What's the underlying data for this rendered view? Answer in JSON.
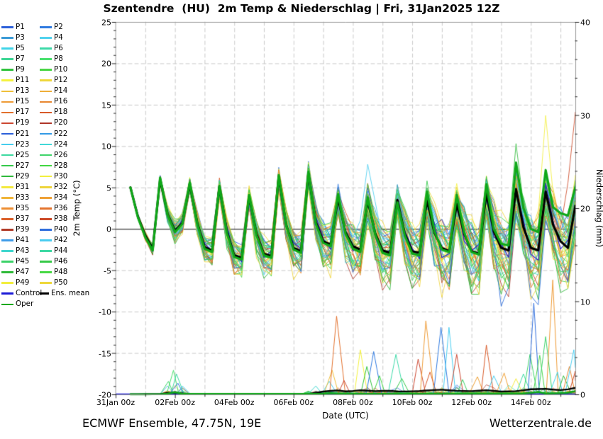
{
  "title": "Szentendre  (HU)  2m Temp & Niederschlag | Fri, 31Jan2025 12Z",
  "axes": {
    "x_label": "Date (UTC)",
    "y_left_label": "2m Temp (°C)",
    "y_right_label": "Niederschlag (mm)"
  },
  "footer": {
    "left": "ECMWF Ensemble, 47.75N, 19E",
    "right": "Wetterzentrale.de"
  },
  "legend": {
    "control_label": "Control",
    "ens_mean_label": "Ens. mean",
    "oper_label": "Oper",
    "control_color": "#1b1ad6",
    "ens_mean_color": "#000000",
    "oper_color": "#0fa818"
  },
  "chart_data": {
    "type": "line",
    "title": "Szentendre  (HU)  2m Temp & Niederschlag | Fri, 31Jan2025 12Z",
    "x_axis": {
      "label": "Date (UTC)",
      "start_day": 0,
      "end_day": 15.5,
      "run_start_day": 0.5,
      "tick_step_days": 2,
      "grid_step_days": 1,
      "tick_labels": [
        "31Jan 00z",
        "02Feb 00z",
        "04Feb 00z",
        "06Feb 00z",
        "08Feb 00z",
        "10Feb 00z",
        "12Feb 00z",
        "14Feb 00z"
      ]
    },
    "y_temp": {
      "label": "2m Temp (°C)",
      "min": -20,
      "max": 25,
      "tick_step": 5,
      "minor_step": 1,
      "zero_line": true
    },
    "y_precip": {
      "label": "Niederschlag (mm)",
      "min": 0,
      "max": 40,
      "tick_step": 10,
      "minor_step": 2
    },
    "ens_mean_temp": [
      [
        0.5,
        5.0
      ],
      [
        0.75,
        1.5
      ],
      [
        1.0,
        -0.8
      ],
      [
        1.25,
        -2.4
      ],
      [
        1.5,
        6.0
      ],
      [
        1.75,
        1.8
      ],
      [
        2.0,
        -0.2
      ],
      [
        2.25,
        0.7
      ],
      [
        2.5,
        5.4
      ],
      [
        2.75,
        0.8
      ],
      [
        3.0,
        -2.2
      ],
      [
        3.25,
        -2.6
      ],
      [
        3.5,
        5.1
      ],
      [
        3.75,
        -0.3
      ],
      [
        4.0,
        -3.2
      ],
      [
        4.25,
        -3.5
      ],
      [
        4.5,
        3.9
      ],
      [
        4.75,
        -0.6
      ],
      [
        5.0,
        -3.0
      ],
      [
        5.25,
        -3.3
      ],
      [
        5.5,
        6.3
      ],
      [
        5.75,
        0.5
      ],
      [
        6.0,
        -2.3
      ],
      [
        6.25,
        -2.7
      ],
      [
        6.5,
        6.7
      ],
      [
        6.75,
        0.8
      ],
      [
        7.0,
        -1.5
      ],
      [
        7.25,
        -1.9
      ],
      [
        7.5,
        3.7
      ],
      [
        7.75,
        -0.4
      ],
      [
        8.0,
        -2.1
      ],
      [
        8.25,
        -2.5
      ],
      [
        8.5,
        3.4
      ],
      [
        8.75,
        -0.5
      ],
      [
        9.0,
        -2.6
      ],
      [
        9.25,
        -2.9
      ],
      [
        9.5,
        3.5
      ],
      [
        9.75,
        -0.6
      ],
      [
        10.0,
        -2.7
      ],
      [
        10.25,
        -2.9
      ],
      [
        10.5,
        3.5
      ],
      [
        10.75,
        -0.5
      ],
      [
        11.0,
        -2.3
      ],
      [
        11.25,
        -2.7
      ],
      [
        11.5,
        3.0
      ],
      [
        11.75,
        -0.6
      ],
      [
        12.0,
        -2.7
      ],
      [
        12.25,
        -3.0
      ],
      [
        12.5,
        4.3
      ],
      [
        12.75,
        -0.3
      ],
      [
        13.0,
        -2.3
      ],
      [
        13.25,
        -2.6
      ],
      [
        13.5,
        4.8
      ],
      [
        13.75,
        0.2
      ],
      [
        14.0,
        -2.3
      ],
      [
        14.25,
        -2.6
      ],
      [
        14.5,
        4.5
      ],
      [
        14.75,
        0.5
      ],
      [
        15.0,
        -1.5
      ],
      [
        15.25,
        -2.3
      ],
      [
        15.5,
        2.8
      ]
    ],
    "oper_temp": [
      [
        0.5,
        5.0
      ],
      [
        0.75,
        1.4
      ],
      [
        1.0,
        -1.0
      ],
      [
        1.25,
        -2.6
      ],
      [
        1.5,
        6.2
      ],
      [
        1.75,
        1.7
      ],
      [
        2.0,
        -0.4
      ],
      [
        2.25,
        0.6
      ],
      [
        2.5,
        5.6
      ],
      [
        2.75,
        0.6
      ],
      [
        3.0,
        -2.4
      ],
      [
        3.25,
        -2.8
      ],
      [
        3.5,
        5.2
      ],
      [
        3.75,
        -0.5
      ],
      [
        4.0,
        -3.4
      ],
      [
        4.25,
        -3.7
      ],
      [
        4.5,
        4.1
      ],
      [
        4.75,
        -0.8
      ],
      [
        5.0,
        -3.2
      ],
      [
        5.25,
        -3.5
      ],
      [
        5.5,
        6.5
      ],
      [
        5.75,
        0.4
      ],
      [
        6.0,
        -2.5
      ],
      [
        6.25,
        -2.9
      ],
      [
        6.5,
        6.9
      ],
      [
        6.75,
        0.6
      ],
      [
        7.0,
        -1.7
      ],
      [
        7.25,
        -2.1
      ],
      [
        7.5,
        4.2
      ],
      [
        7.75,
        -0.6
      ],
      [
        8.0,
        -2.4
      ],
      [
        8.25,
        -2.8
      ],
      [
        8.5,
        3.8
      ],
      [
        8.75,
        -0.7
      ],
      [
        9.0,
        -2.9
      ],
      [
        9.25,
        -3.2
      ],
      [
        9.5,
        3.2
      ],
      [
        9.75,
        -0.8
      ],
      [
        10.0,
        -3.0
      ],
      [
        10.25,
        -3.2
      ],
      [
        10.5,
        4.5
      ],
      [
        10.75,
        -0.3
      ],
      [
        11.0,
        -2.5
      ],
      [
        11.25,
        -2.8
      ],
      [
        11.5,
        4.1
      ],
      [
        11.75,
        -0.4
      ],
      [
        12.0,
        -2.8
      ],
      [
        12.25,
        -3.1
      ],
      [
        12.5,
        5.4
      ],
      [
        12.75,
        0.0
      ],
      [
        13.0,
        -1.8
      ],
      [
        13.25,
        -2.0
      ],
      [
        13.5,
        8.0
      ],
      [
        13.75,
        2.5
      ],
      [
        14.0,
        0.0
      ],
      [
        14.25,
        -0.4
      ],
      [
        14.5,
        7.1
      ],
      [
        14.75,
        2.6
      ],
      [
        15.0,
        1.9
      ],
      [
        15.25,
        1.6
      ],
      [
        15.5,
        5.0
      ]
    ],
    "spread_width": [
      [
        0.5,
        0.12
      ],
      [
        1.0,
        0.35
      ],
      [
        1.5,
        0.45
      ],
      [
        2.0,
        1.1
      ],
      [
        2.5,
        0.8
      ],
      [
        3.0,
        1.3
      ],
      [
        3.5,
        1.0
      ],
      [
        4.0,
        1.5
      ],
      [
        4.5,
        1.2
      ],
      [
        5.0,
        1.7
      ],
      [
        5.5,
        1.3
      ],
      [
        6.0,
        1.8
      ],
      [
        6.5,
        1.4
      ],
      [
        7.0,
        2.1
      ],
      [
        7.5,
        1.7
      ],
      [
        8.0,
        2.3
      ],
      [
        8.5,
        1.9
      ],
      [
        9.0,
        2.5
      ],
      [
        9.5,
        2.0
      ],
      [
        10.0,
        2.7
      ],
      [
        10.5,
        2.1
      ],
      [
        11.0,
        2.9
      ],
      [
        11.5,
        2.3
      ],
      [
        12.0,
        3.1
      ],
      [
        12.5,
        2.4
      ],
      [
        13.0,
        3.2
      ],
      [
        13.5,
        2.6
      ],
      [
        14.0,
        3.4
      ],
      [
        14.5,
        2.8
      ],
      [
        15.0,
        3.6
      ],
      [
        15.5,
        3.2
      ]
    ],
    "temp_anchors": [
      [
        39,
        13.1,
        -9.7
      ],
      [
        39,
        14.2,
        -9.3
      ],
      [
        48,
        14.5,
        13.7
      ],
      [
        37,
        15.5,
        14.1
      ],
      [
        41,
        8.5,
        7.8
      ],
      [
        46,
        13.5,
        10.3
      ],
      [
        10,
        8.25,
        -4.7
      ]
    ],
    "ens_mean_precip": [
      [
        0,
        0
      ],
      [
        1.5,
        0.02
      ],
      [
        1.9,
        0.25
      ],
      [
        2.1,
        0.15
      ],
      [
        2.5,
        0.02
      ],
      [
        6.5,
        0.05
      ],
      [
        7.0,
        0.3
      ],
      [
        7.45,
        0.45
      ],
      [
        7.8,
        0.3
      ],
      [
        8.25,
        0.45
      ],
      [
        8.7,
        0.35
      ],
      [
        9.2,
        0.4
      ],
      [
        9.6,
        0.3
      ],
      [
        10.2,
        0.35
      ],
      [
        10.6,
        0.45
      ],
      [
        11.0,
        0.5
      ],
      [
        11.4,
        0.4
      ],
      [
        12.0,
        0.35
      ],
      [
        12.5,
        0.45
      ],
      [
        13.0,
        0.3
      ],
      [
        13.5,
        0.35
      ],
      [
        14.0,
        0.55
      ],
      [
        14.5,
        0.6
      ],
      [
        14.8,
        0.5
      ],
      [
        15.1,
        0.45
      ],
      [
        15.5,
        0.7
      ]
    ],
    "oper_precip": [
      [
        0,
        0
      ],
      [
        1.7,
        0.02
      ],
      [
        1.95,
        0.3
      ],
      [
        2.15,
        0.05
      ],
      [
        6.9,
        0.05
      ],
      [
        7.3,
        0.15
      ],
      [
        7.7,
        0.05
      ],
      [
        13.9,
        0.1
      ],
      [
        14.2,
        0.3
      ],
      [
        14.5,
        0.1
      ],
      [
        15.2,
        0.15
      ],
      [
        15.5,
        0.35
      ]
    ],
    "precip_events": [
      [
        1.78,
        1.4,
        "#3ed46a"
      ],
      [
        1.95,
        2.6,
        "#49e06e"
      ],
      [
        2.05,
        2.2,
        "#3cd9a0"
      ],
      [
        2.1,
        1.2,
        "#2e6ddd"
      ],
      [
        2.25,
        0.9,
        "#45cdee"
      ],
      [
        6.75,
        0.9,
        "#3fd6ce"
      ],
      [
        7.2,
        1.4,
        "#45cdee"
      ],
      [
        7.3,
        2.6,
        "#f0bf3a"
      ],
      [
        7.45,
        8.4,
        "#e2702c"
      ],
      [
        7.7,
        1.5,
        "#cc4731"
      ],
      [
        8.25,
        4.8,
        "#f4f23e"
      ],
      [
        8.47,
        3.0,
        "#2ec23c"
      ],
      [
        8.7,
        4.6,
        "#2f7ae0"
      ],
      [
        8.9,
        2.0,
        "#41d741"
      ],
      [
        9.45,
        4.3,
        "#3cd9a8"
      ],
      [
        9.65,
        1.7,
        "#36c948"
      ],
      [
        10.2,
        3.8,
        "#cc4731"
      ],
      [
        10.46,
        7.9,
        "#ee9a34"
      ],
      [
        10.6,
        2.4,
        "#d85a28"
      ],
      [
        10.97,
        7.2,
        "#2f7ae0"
      ],
      [
        11.24,
        7.2,
        "#49cdf0"
      ],
      [
        11.5,
        4.3,
        "#cc4731"
      ],
      [
        11.7,
        1.6,
        "#3bd268"
      ],
      [
        12.2,
        1.9,
        "#efa136"
      ],
      [
        12.5,
        5.3,
        "#d85a28"
      ],
      [
        12.75,
        2.0,
        "#45cdee"
      ],
      [
        13.1,
        2.3,
        "#efa136"
      ],
      [
        13.5,
        1.7,
        "#f3e93c"
      ],
      [
        13.75,
        2.2,
        "#3ed9a4"
      ],
      [
        13.97,
        4.3,
        "#3ed46a"
      ],
      [
        14.1,
        9.8,
        "#2e6ddd"
      ],
      [
        14.3,
        4.2,
        "#49d545"
      ],
      [
        14.5,
        6.2,
        "#3bd268"
      ],
      [
        14.74,
        12.3,
        "#ee9a34"
      ],
      [
        14.9,
        2.4,
        "#3fd4e8"
      ],
      [
        15.1,
        2.0,
        "#2eba38"
      ],
      [
        15.3,
        3.0,
        "#e8862f"
      ],
      [
        15.45,
        4.8,
        "#49cdf0"
      ],
      [
        15.5,
        2.5,
        "#cc4a28"
      ]
    ],
    "members": {
      "count": 50,
      "seed": 42,
      "labels": [
        "P1",
        "P2",
        "P3",
        "P4",
        "P5",
        "P6",
        "P7",
        "P8",
        "P9",
        "P10",
        "P11",
        "P12",
        "P13",
        "P14",
        "P15",
        "P16",
        "P17",
        "P18",
        "P19",
        "P20",
        "P21",
        "P22",
        "P23",
        "P24",
        "P25",
        "P26",
        "P27",
        "P28",
        "P29",
        "P30",
        "P31",
        "P32",
        "P33",
        "P34",
        "P35",
        "P36",
        "P37",
        "P38",
        "P39",
        "P40",
        "P41",
        "P42",
        "P43",
        "P44",
        "P45",
        "P46",
        "P47",
        "P48",
        "P49",
        "P50"
      ],
      "colors": [
        "#2b5fd9",
        "#2f7ae0",
        "#3b9bd6",
        "#52d2ee",
        "#3fd4e8",
        "#3cd9a8",
        "#3dd694",
        "#49e06e",
        "#2ec23c",
        "#49d545",
        "#f4f23e",
        "#eed73a",
        "#f0bf3a",
        "#efae38",
        "#ee9a34",
        "#e8862f",
        "#e2702c",
        "#d85a28",
        "#cc4731",
        "#ae3528",
        "#2b5fd9",
        "#339ae6",
        "#45cdee",
        "#40d8d8",
        "#3cd9a0",
        "#3ed46a",
        "#34c94a",
        "#41d741",
        "#2eb93a",
        "#f2ef3d",
        "#f3e93c",
        "#eed43a",
        "#f0b438",
        "#efa136",
        "#ed8d31",
        "#e4742d",
        "#da5f29",
        "#cc4a28",
        "#b03a27",
        "#2e6ddd",
        "#3f9ce8",
        "#49cdf0",
        "#3fd6ce",
        "#3ed9a4",
        "#3bd268",
        "#36c948",
        "#2eba38",
        "#47d944",
        "#f2ee3c",
        "#eed839"
      ]
    },
    "style": {
      "grid_color": "#c8c8c8",
      "spine_color": "#9a9a9a",
      "tick_color": "#222222",
      "zero_line_color": "#000000"
    }
  }
}
